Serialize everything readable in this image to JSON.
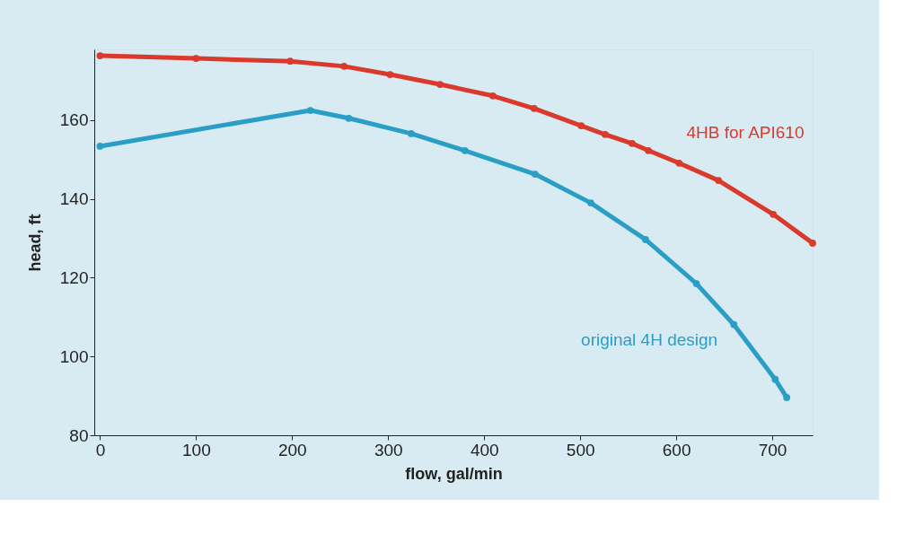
{
  "chart_data": {
    "type": "line",
    "xlabel": "flow, gal/min",
    "ylabel": "head, ft",
    "xlim": [
      -6,
      742
    ],
    "ylim": [
      80,
      178
    ],
    "xticks": [
      0,
      100,
      200,
      300,
      400,
      500,
      600,
      700
    ],
    "yticks": [
      80,
      100,
      120,
      140,
      160
    ],
    "grid": false,
    "marker": "circle",
    "line_style": "solid",
    "series": [
      {
        "name": "4HB for API610",
        "color": "#d93a2b",
        "x": [
          0,
          100,
          198,
          254,
          302,
          354,
          409,
          452,
          501,
          526,
          554,
          571,
          603,
          644,
          701,
          742
        ],
        "values": [
          176.4,
          175.7,
          175.0,
          173.7,
          171.6,
          169.1,
          166.2,
          163.0,
          158.6,
          156.4,
          154.1,
          152.3,
          149.1,
          144.7,
          136.1,
          128.8
        ]
      },
      {
        "name": "original 4H design",
        "color": "#2a9ec4",
        "x": [
          0,
          219,
          259,
          324,
          380,
          453,
          511,
          568,
          621,
          660,
          703,
          715
        ],
        "values": [
          153.4,
          162.5,
          160.5,
          156.6,
          152.3,
          146.3,
          139.0,
          129.7,
          118.5,
          108.1,
          94.2,
          89.6
        ]
      }
    ]
  }
}
